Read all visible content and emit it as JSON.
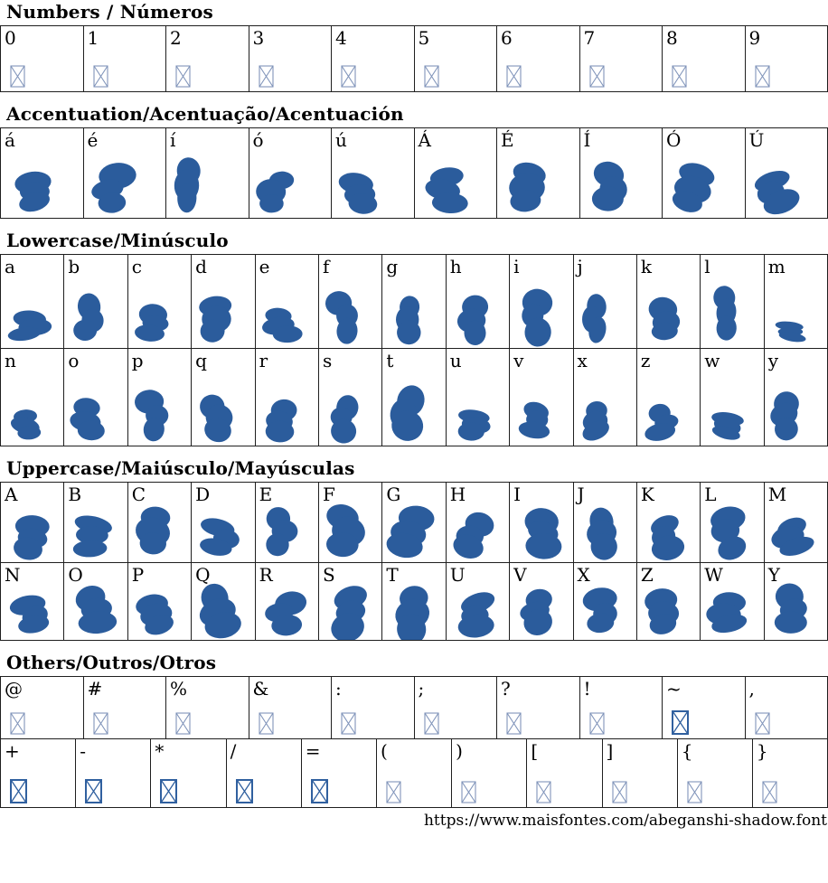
{
  "colors": {
    "glyph_blue": "#2b5c9c",
    "tofu_thin": "#8094ba",
    "tofu_bold": "#30609f",
    "table_border": "#1f1f1f"
  },
  "footer": {
    "url": "https://www.maisfontes.com/abeganshi-shadow.font"
  },
  "sections": [
    {
      "id": "numbers",
      "title": "Numbers / Números",
      "rows": [
        {
          "cells": [
            {
              "label": "0",
              "glyph": "missing"
            },
            {
              "label": "1",
              "glyph": "missing"
            },
            {
              "label": "2",
              "glyph": "missing"
            },
            {
              "label": "3",
              "glyph": "missing"
            },
            {
              "label": "4",
              "glyph": "missing"
            },
            {
              "label": "5",
              "glyph": "missing"
            },
            {
              "label": "6",
              "glyph": "missing"
            },
            {
              "label": "7",
              "glyph": "missing"
            },
            {
              "label": "8",
              "glyph": "missing"
            },
            {
              "label": "9",
              "glyph": "missing"
            }
          ]
        }
      ]
    },
    {
      "id": "accentuation",
      "title": "Accentuation/Acentuação/Acentuación",
      "rows": [
        {
          "cells": [
            {
              "label": "á",
              "glyph": "blob"
            },
            {
              "label": "é",
              "glyph": "blob"
            },
            {
              "label": "í",
              "glyph": "blob"
            },
            {
              "label": "ó",
              "glyph": "blob"
            },
            {
              "label": "ú",
              "glyph": "blob"
            },
            {
              "label": "Á",
              "glyph": "blob"
            },
            {
              "label": "É",
              "glyph": "blob"
            },
            {
              "label": "Í",
              "glyph": "blob"
            },
            {
              "label": "Ó",
              "glyph": "blob"
            },
            {
              "label": "Ú",
              "glyph": "blob"
            }
          ]
        }
      ]
    },
    {
      "id": "lowercase",
      "title": "Lowercase/Minúsculo",
      "rows": [
        {
          "cells": [
            {
              "label": "a",
              "glyph": "blob"
            },
            {
              "label": "b",
              "glyph": "blob"
            },
            {
              "label": "c",
              "glyph": "blob"
            },
            {
              "label": "d",
              "glyph": "blob"
            },
            {
              "label": "e",
              "glyph": "blob"
            },
            {
              "label": "f",
              "glyph": "blob"
            },
            {
              "label": "g",
              "glyph": "blob"
            },
            {
              "label": "h",
              "glyph": "blob"
            },
            {
              "label": "i",
              "glyph": "blob"
            },
            {
              "label": "j",
              "glyph": "blob"
            },
            {
              "label": "k",
              "glyph": "blob"
            },
            {
              "label": "l",
              "glyph": "blob"
            },
            {
              "label": "m",
              "glyph": "blob"
            }
          ]
        },
        {
          "cells": [
            {
              "label": "n",
              "glyph": "blob"
            },
            {
              "label": "o",
              "glyph": "blob"
            },
            {
              "label": "p",
              "glyph": "blob"
            },
            {
              "label": "q",
              "glyph": "blob"
            },
            {
              "label": "r",
              "glyph": "blob"
            },
            {
              "label": "s",
              "glyph": "blob"
            },
            {
              "label": "t",
              "glyph": "blob"
            },
            {
              "label": "u",
              "glyph": "blob"
            },
            {
              "label": "v",
              "glyph": "blob"
            },
            {
              "label": "x",
              "glyph": "blob"
            },
            {
              "label": "z",
              "glyph": "blob"
            },
            {
              "label": "w",
              "glyph": "blob"
            },
            {
              "label": "y",
              "glyph": "blob"
            }
          ]
        }
      ]
    },
    {
      "id": "uppercase",
      "title": "Uppercase/Maiúsculo/Mayúsculas",
      "rows": [
        {
          "cells": [
            {
              "label": "A",
              "glyph": "blob"
            },
            {
              "label": "B",
              "glyph": "blob"
            },
            {
              "label": "C",
              "glyph": "blob"
            },
            {
              "label": "D",
              "glyph": "blob"
            },
            {
              "label": "E",
              "glyph": "blob"
            },
            {
              "label": "F",
              "glyph": "blob"
            },
            {
              "label": "G",
              "glyph": "blob"
            },
            {
              "label": "H",
              "glyph": "blob"
            },
            {
              "label": "I",
              "glyph": "blob"
            },
            {
              "label": "J",
              "glyph": "blob"
            },
            {
              "label": "K",
              "glyph": "blob"
            },
            {
              "label": "L",
              "glyph": "blob"
            },
            {
              "label": "M",
              "glyph": "blob"
            }
          ]
        },
        {
          "cells": [
            {
              "label": "N",
              "glyph": "blob"
            },
            {
              "label": "O",
              "glyph": "blob"
            },
            {
              "label": "P",
              "glyph": "blob"
            },
            {
              "label": "Q",
              "glyph": "blob"
            },
            {
              "label": "R",
              "glyph": "blob"
            },
            {
              "label": "S",
              "glyph": "blob"
            },
            {
              "label": "T",
              "glyph": "blob"
            },
            {
              "label": "U",
              "glyph": "blob"
            },
            {
              "label": "V",
              "glyph": "blob"
            },
            {
              "label": "X",
              "glyph": "blob"
            },
            {
              "label": "Z",
              "glyph": "blob"
            },
            {
              "label": "W",
              "glyph": "blob"
            },
            {
              "label": "Y",
              "glyph": "blob"
            }
          ]
        }
      ]
    },
    {
      "id": "others",
      "title": "Others/Outros/Otros",
      "rows": [
        {
          "cells": [
            {
              "label": "@",
              "glyph": "missing"
            },
            {
              "label": "#",
              "glyph": "missing"
            },
            {
              "label": "%",
              "glyph": "missing"
            },
            {
              "label": "&",
              "glyph": "missing"
            },
            {
              "label": ":",
              "glyph": "missing"
            },
            {
              "label": ";",
              "glyph": "missing"
            },
            {
              "label": "?",
              "glyph": "missing"
            },
            {
              "label": "!",
              "glyph": "missing"
            },
            {
              "label": "~",
              "glyph": "missing-bold"
            },
            {
              "label": ",",
              "glyph": "missing"
            }
          ]
        },
        {
          "cells": [
            {
              "label": "+",
              "glyph": "missing-bold"
            },
            {
              "label": "-",
              "glyph": "missing-bold"
            },
            {
              "label": "*",
              "glyph": "missing-bold"
            },
            {
              "label": "/",
              "glyph": "missing-bold"
            },
            {
              "label": "=",
              "glyph": "missing-bold"
            },
            {
              "label": "(",
              "glyph": "missing"
            },
            {
              "label": ")",
              "glyph": "missing"
            },
            {
              "label": "[",
              "glyph": "missing"
            },
            {
              "label": "]",
              "glyph": "missing"
            },
            {
              "label": "{",
              "glyph": "missing"
            },
            {
              "label": "}",
              "glyph": "missing"
            }
          ]
        }
      ]
    }
  ]
}
